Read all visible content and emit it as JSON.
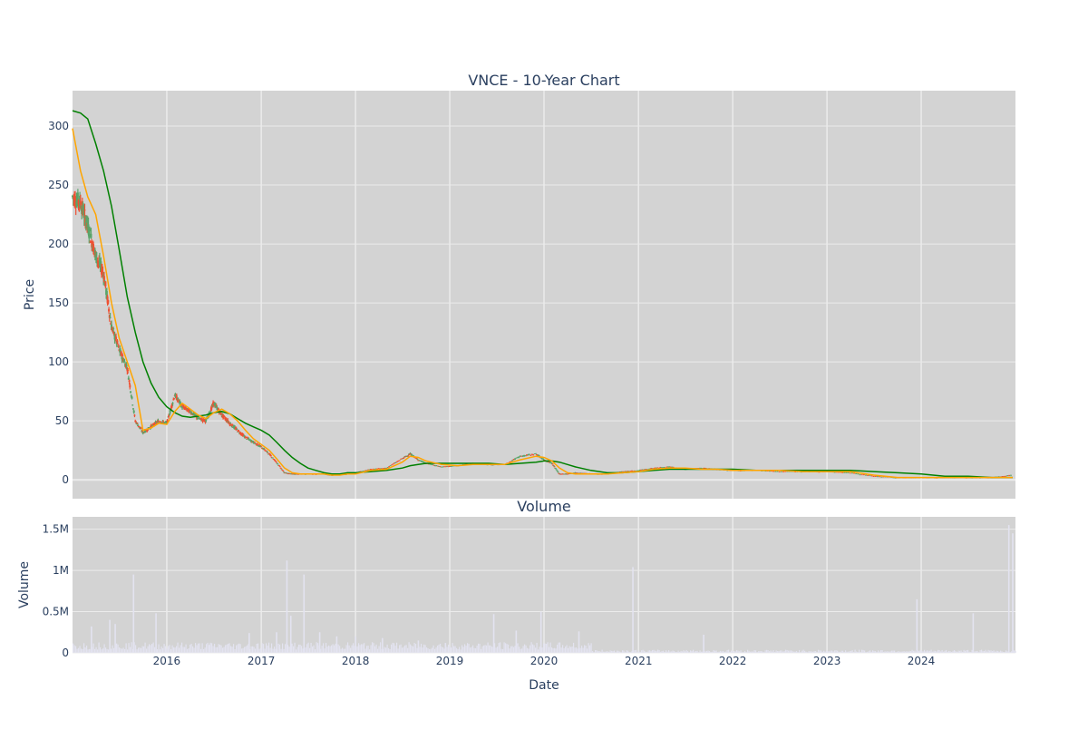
{
  "colors": {
    "plot_bg": "#d3d3d3",
    "grid": "#ebebeb",
    "candle_up": "#5aa469",
    "candle_down": "#ef5032",
    "ma_short": "#ffa500",
    "ma_long": "#008000",
    "volume": "#e3e3f0",
    "text": "#2a3f5f"
  },
  "chart_data": [
    {
      "type": "candlestick",
      "title": "VNCE - 10-Year Chart",
      "ylabel": "Price",
      "ylim": [
        -16,
        330
      ],
      "xlim": [
        "2015-01-01",
        "2024-12-31"
      ],
      "yticks": [
        0,
        50,
        100,
        150,
        200,
        250,
        300
      ],
      "grid": true,
      "ohlc_summary": {
        "dates": [
          "2015-01-01",
          "2015-02-01",
          "2015-03-01",
          "2015-04-01",
          "2015-05-01",
          "2015-06-01",
          "2015-07-01",
          "2015-08-01",
          "2015-09-01",
          "2015-10-01",
          "2015-11-01",
          "2015-12-01",
          "2016-01-01",
          "2016-02-01",
          "2016-03-01",
          "2016-04-01",
          "2016-05-01",
          "2016-06-01",
          "2016-07-01",
          "2016-08-01",
          "2016-09-01",
          "2016-10-01",
          "2016-11-01",
          "2016-12-01",
          "2017-01-01",
          "2017-02-01",
          "2017-03-01",
          "2017-04-01",
          "2017-05-01",
          "2017-06-01",
          "2017-07-01",
          "2017-08-01",
          "2017-09-01",
          "2017-10-01",
          "2017-11-01",
          "2017-12-01",
          "2018-01-01",
          "2018-03-01",
          "2018-05-01",
          "2018-07-01",
          "2018-08-01",
          "2018-09-01",
          "2018-10-01",
          "2018-12-01",
          "2019-02-01",
          "2019-04-01",
          "2019-06-01",
          "2019-08-01",
          "2019-10-01",
          "2019-12-01",
          "2020-01-01",
          "2020-02-01",
          "2020-03-01",
          "2020-04-01",
          "2020-05-01",
          "2020-07-01",
          "2020-09-01",
          "2020-11-01",
          "2021-01-01",
          "2021-03-01",
          "2021-05-01",
          "2021-07-01",
          "2021-09-01",
          "2021-11-01",
          "2022-01-01",
          "2022-04-01",
          "2022-07-01",
          "2022-10-01",
          "2023-01-01",
          "2023-04-01",
          "2023-07-01",
          "2023-10-01",
          "2024-01-01",
          "2024-04-01",
          "2024-07-01",
          "2024-10-01",
          "2024-12-20"
        ],
        "close": [
          240,
          235,
          215,
          190,
          175,
          130,
          110,
          95,
          50,
          40,
          45,
          50,
          48,
          72,
          62,
          58,
          52,
          50,
          65,
          55,
          48,
          42,
          36,
          32,
          28,
          22,
          15,
          6,
          5,
          5,
          5,
          5,
          5,
          4,
          5,
          5,
          6,
          9,
          10,
          18,
          22,
          17,
          14,
          11,
          12,
          14,
          13,
          13,
          20,
          22,
          17,
          14,
          5,
          5,
          6,
          5,
          5,
          7,
          8,
          10,
          11,
          9,
          10,
          9,
          8,
          8,
          7,
          7,
          7,
          6,
          3,
          2,
          2,
          2,
          2,
          2,
          4
        ]
      },
      "moving_averages": [
        {
          "window": "short",
          "values": [
            298,
            262,
            240,
            225,
            190,
            150,
            120,
            100,
            80,
            42,
            44,
            48,
            47,
            58,
            65,
            60,
            55,
            52,
            57,
            60,
            56,
            50,
            42,
            35,
            30,
            25,
            18,
            10,
            6,
            5,
            5,
            5,
            5,
            4,
            4,
            5,
            5,
            8,
            9,
            15,
            20,
            19,
            16,
            13,
            12,
            13,
            13,
            13,
            17,
            20,
            19,
            16,
            10,
            6,
            5,
            5,
            5,
            6,
            7,
            9,
            10,
            10,
            9,
            9,
            8,
            8,
            8,
            7,
            7,
            7,
            4,
            2,
            2,
            2,
            2,
            2,
            2
          ]
        },
        {
          "window": "long",
          "values": [
            313,
            311,
            306,
            285,
            262,
            232,
            195,
            155,
            125,
            100,
            82,
            70,
            62,
            57,
            54,
            53,
            54,
            55,
            57,
            58,
            56,
            52,
            48,
            45,
            42,
            38,
            32,
            25,
            19,
            14,
            10,
            8,
            6,
            5,
            5,
            6,
            6,
            7,
            8,
            10,
            12,
            13,
            14,
            14,
            14,
            14,
            14,
            13,
            14,
            15,
            16,
            16,
            15,
            13,
            11,
            8,
            6,
            6,
            7,
            8,
            9,
            9,
            9,
            9,
            9,
            8,
            8,
            8,
            8,
            8,
            7,
            6,
            5,
            3,
            3,
            2,
            2
          ]
        }
      ]
    },
    {
      "type": "bar",
      "title": "Volume",
      "xlabel": "Date",
      "ylabel": "Volume",
      "ylim": [
        0,
        1650000
      ],
      "yticks": [
        0,
        500000,
        1000000,
        1500000
      ],
      "ytick_labels": [
        "0",
        "0.5M",
        "1M",
        "1.5M"
      ],
      "xticks": [
        "2016-01-01",
        "2017-01-01",
        "2018-01-01",
        "2019-01-01",
        "2020-01-01",
        "2021-01-01",
        "2022-01-01",
        "2023-01-01",
        "2024-01-01"
      ],
      "xtick_labels": [
        "2016",
        "2017",
        "2018",
        "2019",
        "2020",
        "2021",
        "2022",
        "2023",
        "2024"
      ],
      "spikes": [
        {
          "date": "2015-03-15",
          "value": 320000
        },
        {
          "date": "2015-05-25",
          "value": 400000
        },
        {
          "date": "2015-06-15",
          "value": 350000
        },
        {
          "date": "2015-08-25",
          "value": 950000
        },
        {
          "date": "2015-11-20",
          "value": 480000
        },
        {
          "date": "2016-06-15",
          "value": 100000
        },
        {
          "date": "2016-11-15",
          "value": 240000
        },
        {
          "date": "2017-03-01",
          "value": 250000
        },
        {
          "date": "2017-04-10",
          "value": 1120000
        },
        {
          "date": "2017-04-25",
          "value": 450000
        },
        {
          "date": "2017-06-15",
          "value": 950000
        },
        {
          "date": "2017-08-15",
          "value": 250000
        },
        {
          "date": "2017-10-20",
          "value": 200000
        },
        {
          "date": "2018-01-01",
          "value": 200000
        },
        {
          "date": "2018-04-15",
          "value": 180000
        },
        {
          "date": "2018-09-01",
          "value": 150000
        },
        {
          "date": "2018-12-15",
          "value": 120000
        },
        {
          "date": "2019-06-20",
          "value": 470000
        },
        {
          "date": "2019-09-15",
          "value": 270000
        },
        {
          "date": "2019-12-20",
          "value": 500000
        },
        {
          "date": "2020-05-15",
          "value": 260000
        },
        {
          "date": "2020-12-10",
          "value": 1040000
        },
        {
          "date": "2021-09-10",
          "value": 220000
        },
        {
          "date": "2023-12-15",
          "value": 650000
        },
        {
          "date": "2024-07-20",
          "value": 480000
        },
        {
          "date": "2024-12-05",
          "value": 1550000
        },
        {
          "date": "2024-12-20",
          "value": 1450000
        }
      ]
    }
  ]
}
